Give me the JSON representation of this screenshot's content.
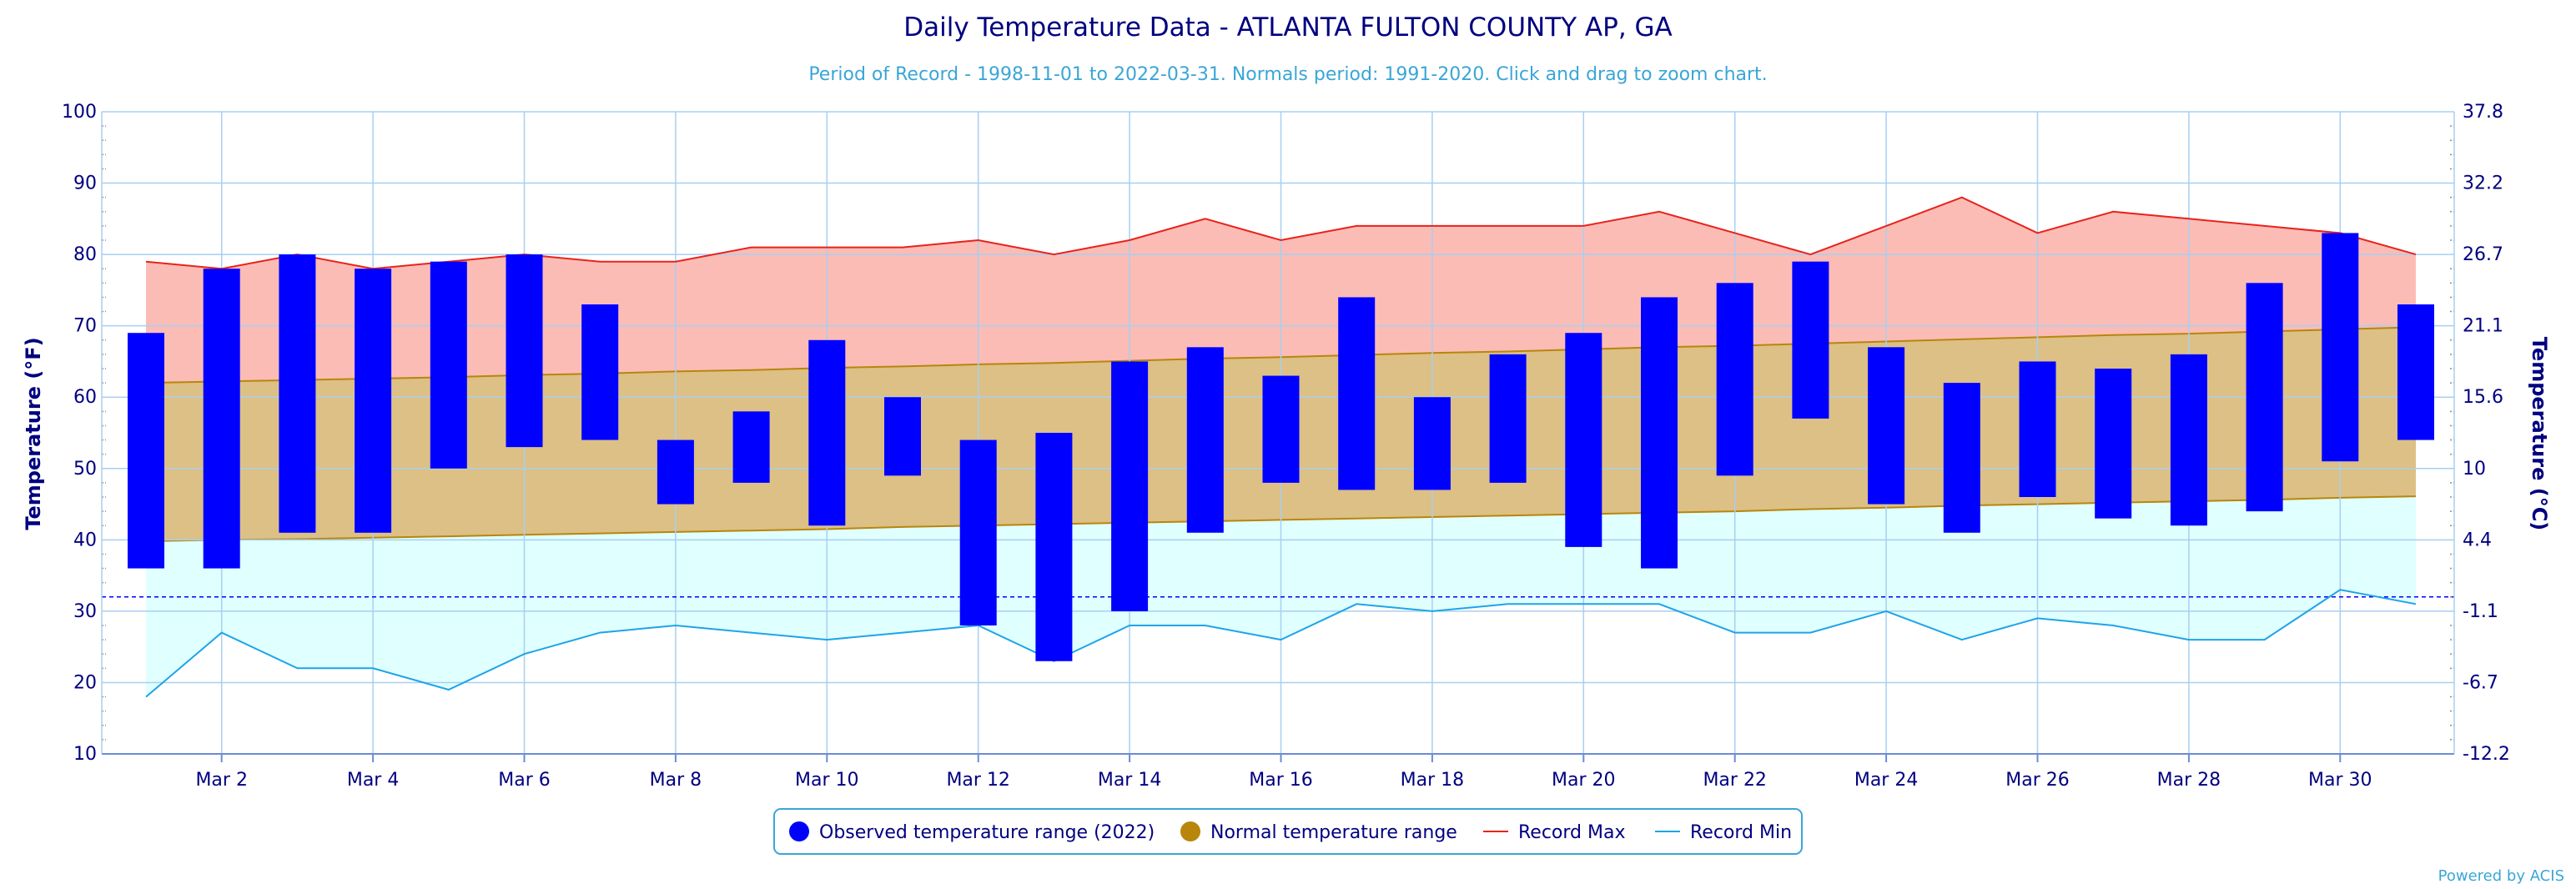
{
  "chart_data": {
    "type": "bar",
    "title": "Daily Temperature Data - ATLANTA FULTON COUNTY AP, GA",
    "subtitle": "Period of Record - 1998-11-01 to 2022-03-31. Normals period: 1991-2020. Click and drag to zoom chart.",
    "ylabel": "Temperature (°F)",
    "ylabel_right": "Temperature (°C)",
    "ylim": [
      10,
      100
    ],
    "y_ticks": [
      10,
      20,
      30,
      40,
      50,
      60,
      70,
      80,
      90,
      100
    ],
    "y_ticks_right": [
      "37.8",
      "32.2",
      "26.7",
      "21.1",
      "15.6",
      "10",
      "4.4",
      "-1.1",
      "-6.7",
      "-12.2"
    ],
    "x_tick_labels": [
      "Mar 2",
      "Mar 4",
      "Mar 6",
      "Mar 8",
      "Mar 10",
      "Mar 12",
      "Mar 14",
      "Mar 16",
      "Mar 18",
      "Mar 20",
      "Mar 22",
      "Mar 24",
      "Mar 26",
      "Mar 28",
      "Mar 30"
    ],
    "x_tick_days": [
      2,
      4,
      6,
      8,
      10,
      12,
      14,
      16,
      18,
      20,
      22,
      24,
      26,
      28,
      30
    ],
    "days": [
      1,
      2,
      3,
      4,
      5,
      6,
      7,
      8,
      9,
      10,
      11,
      12,
      13,
      14,
      15,
      16,
      17,
      18,
      19,
      20,
      21,
      22,
      23,
      24,
      25,
      26,
      27,
      28,
      29,
      30,
      31
    ],
    "freezing_line": 32,
    "grid": true,
    "legend_position": "bottom",
    "series": [
      {
        "name": "Observed temperature range (2022)",
        "color": "#0000ff",
        "low": [
          36,
          36,
          41,
          41,
          50,
          53,
          54,
          45,
          48,
          42,
          49,
          28,
          23,
          30,
          41,
          48,
          47,
          47,
          48,
          39,
          36,
          49,
          57,
          45,
          41,
          46,
          43,
          42,
          44,
          51,
          54
        ],
        "high": [
          69,
          78,
          80,
          78,
          79,
          80,
          73,
          54,
          58,
          68,
          60,
          54,
          55,
          65,
          67,
          63,
          74,
          60,
          66,
          69,
          74,
          76,
          79,
          67,
          62,
          65,
          64,
          66,
          76,
          83,
          73
        ]
      },
      {
        "name": "Normal temperature range",
        "color": "#b8860b",
        "low": [
          39.8,
          40.0,
          40.1,
          40.3,
          40.5,
          40.7,
          40.9,
          41.1,
          41.3,
          41.5,
          41.8,
          42.0,
          42.2,
          42.4,
          42.6,
          42.8,
          43.0,
          43.2,
          43.4,
          43.6,
          43.8,
          44.0,
          44.3,
          44.5,
          44.8,
          45.0,
          45.2,
          45.4,
          45.6,
          45.9,
          46.1
        ],
        "high": [
          62.0,
          62.2,
          62.4,
          62.6,
          62.8,
          63.1,
          63.3,
          63.6,
          63.8,
          64.1,
          64.3,
          64.6,
          64.8,
          65.1,
          65.4,
          65.6,
          65.9,
          66.2,
          66.4,
          66.7,
          67.0,
          67.2,
          67.5,
          67.8,
          68.1,
          68.4,
          68.7,
          68.9,
          69.2,
          69.5,
          69.8
        ]
      },
      {
        "name": "Record Max",
        "color": "#e8231c",
        "values": [
          79,
          78,
          80,
          78,
          79,
          80,
          79,
          79,
          81,
          81,
          81,
          82,
          80,
          82,
          85,
          82,
          84,
          84,
          84,
          84,
          86,
          83,
          80,
          84,
          88,
          83,
          86,
          85,
          84,
          83,
          80
        ]
      },
      {
        "name": "Record Min",
        "color": "#1ea4e8",
        "values": [
          18,
          27,
          22,
          22,
          19,
          24,
          27,
          28,
          27,
          26,
          27,
          28,
          23,
          28,
          28,
          26,
          31,
          30,
          31,
          31,
          31,
          27,
          27,
          30,
          26,
          29,
          28,
          26,
          26,
          33,
          31
        ]
      }
    ],
    "credit": "Powered by ACIS"
  }
}
